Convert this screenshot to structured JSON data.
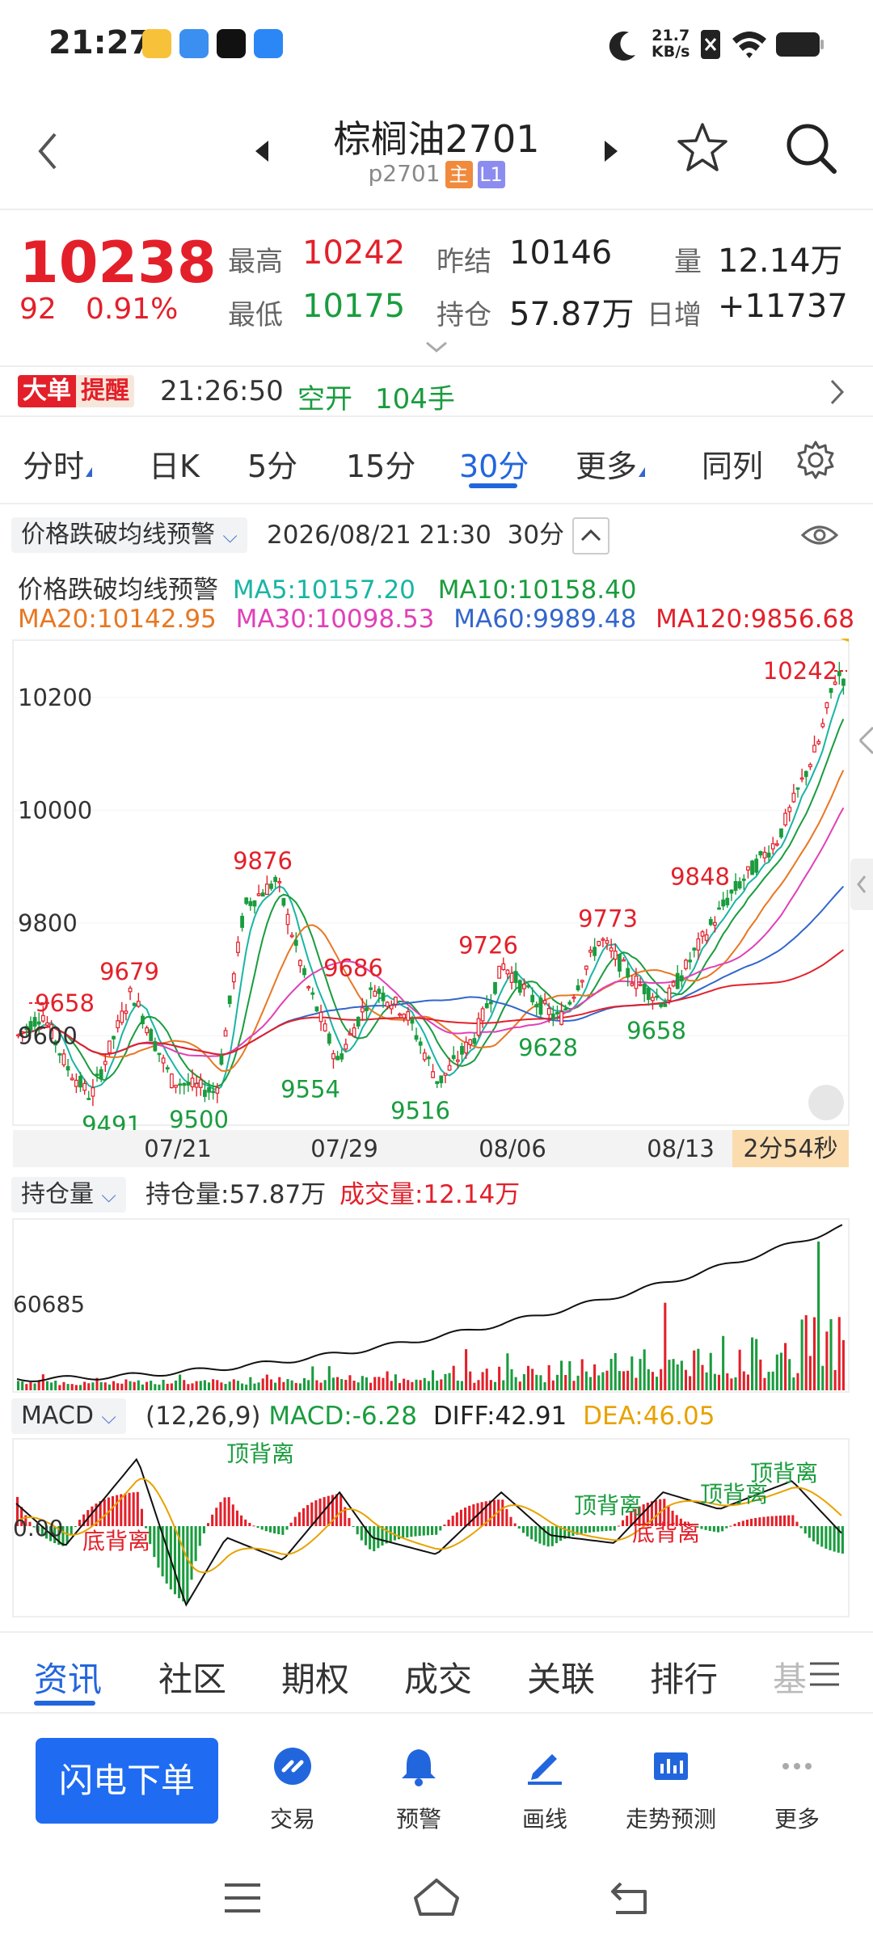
{
  "status_bar": {
    "time": "21:27",
    "speed_value": "21.7",
    "speed_unit": "KB/s"
  },
  "header": {
    "title": "棕榈油2701",
    "code": "p2701",
    "tag_main": "主",
    "tag_l1": "L1"
  },
  "quote": {
    "price": "10238",
    "change": "92",
    "change_pct": "0.91%",
    "high_label": "最高",
    "high": "10242",
    "low_label": "最低",
    "low": "10175",
    "prev_settle_label": "昨结",
    "prev_settle": "10146",
    "oi_label": "持仓",
    "oi": "57.87万",
    "vol_label": "量",
    "vol": "12.14万",
    "daily_inc_label": "日增",
    "daily_inc": "+11737"
  },
  "alert": {
    "badge1": "大单",
    "badge2": "提醒",
    "time": "21:26:50",
    "type": "空开",
    "qty": "104手"
  },
  "tabs": [
    {
      "label": "分时"
    },
    {
      "label": "日K"
    },
    {
      "label": "5分"
    },
    {
      "label": "15分"
    },
    {
      "label": "30分"
    },
    {
      "label": "更多"
    },
    {
      "label": "同列"
    }
  ],
  "indicator": {
    "selector": "价格跌破均线预警",
    "datetime": "2026/08/21 21:30",
    "period": "30分"
  },
  "ma": {
    "name": "价格跌破均线预警",
    "ma5": "MA5:10157.20",
    "ma10": "MA10:10158.40",
    "ma20": "MA20:10142.95",
    "ma30": "MA30:10098.53",
    "ma60": "MA60:9989.48",
    "ma120": "MA120:9856.68"
  },
  "colors": {
    "ma5": "#19b5a5",
    "ma10": "#1a9c3e",
    "ma20": "#e87722",
    "ma30": "#e040b8",
    "ma60": "#3366cc",
    "ma120": "#e3202a",
    "up": "#e3202a",
    "down": "#1a9c3e"
  },
  "chart_data": [
    {
      "type": "candlestick",
      "yticks": [
        9600,
        9800,
        10000,
        10200
      ],
      "ylim": [
        9450,
        10290
      ],
      "xticks": [
        "07/21",
        "07/29",
        "08/06",
        "08/13"
      ],
      "annotations": [
        {
          "label": "10242",
          "value": 10242,
          "kind": "high"
        },
        {
          "label": "9876",
          "value": 9876,
          "kind": "high"
        },
        {
          "label": "9679",
          "value": 9679,
          "kind": "high"
        },
        {
          "label": "9658",
          "value": 9658,
          "kind": "left"
        },
        {
          "label": "9686",
          "value": 9686,
          "kind": "high"
        },
        {
          "label": "9726",
          "value": 9726,
          "kind": "high"
        },
        {
          "label": "9773",
          "value": 9773,
          "kind": "high"
        },
        {
          "label": "9848",
          "value": 9848,
          "kind": "high"
        },
        {
          "label": "9491",
          "value": 9491,
          "kind": "low"
        },
        {
          "label": "9500",
          "value": 9500,
          "kind": "low"
        },
        {
          "label": "9554",
          "value": 9554,
          "kind": "low"
        },
        {
          "label": "9516",
          "value": 9516,
          "kind": "low"
        },
        {
          "label": "9628",
          "value": 9628,
          "kind": "low"
        },
        {
          "label": "9658",
          "value": 9658,
          "kind": "low"
        }
      ],
      "countdown": "2分54秒"
    },
    {
      "type": "bar",
      "selector": "持仓量",
      "oi_label": "持仓量:57.87万",
      "vol_label": "成交量:12.14万",
      "ytick": "60685"
    },
    {
      "type": "bar",
      "selector": "MACD",
      "params": "(12,26,9)",
      "macd": "MACD:-6.28",
      "diff": "DIFF:42.91",
      "dea": "DEA:46.05",
      "ytick": "0.00",
      "divergence_top": "顶背离",
      "divergence_bottom": "底背离"
    }
  ],
  "bottom_tabs": [
    {
      "label": "资讯"
    },
    {
      "label": "社区"
    },
    {
      "label": "期权"
    },
    {
      "label": "成交"
    },
    {
      "label": "关联"
    },
    {
      "label": "排行"
    },
    {
      "label": "基"
    }
  ],
  "toolbar": {
    "order": "闪电下单",
    "items": [
      {
        "label": "交易"
      },
      {
        "label": "预警"
      },
      {
        "label": "画线"
      },
      {
        "label": "走势预测"
      },
      {
        "label": "更多"
      }
    ]
  }
}
